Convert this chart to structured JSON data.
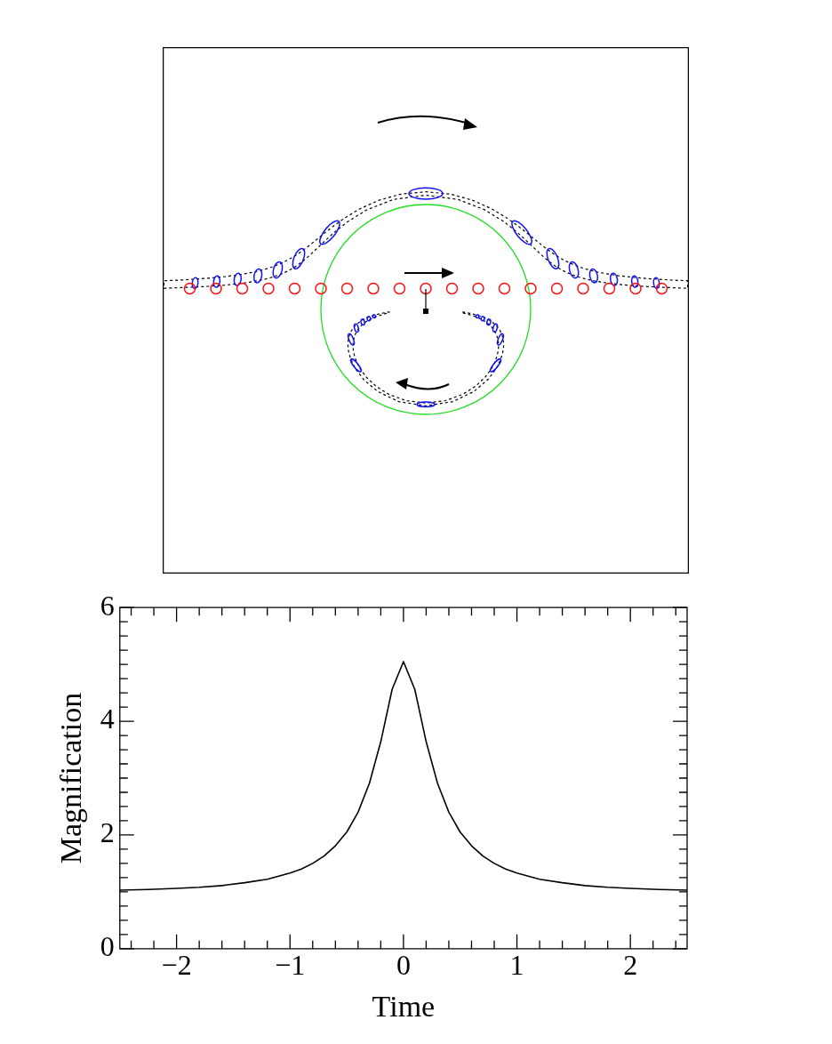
{
  "chart_data": {
    "type": "line",
    "xlabel": "Time",
    "ylabel": "Magnification",
    "x": [
      -2.5,
      -2.25,
      -2.0,
      -1.8,
      -1.6,
      -1.4,
      -1.2,
      -1.0,
      -0.9,
      -0.8,
      -0.7,
      -0.6,
      -0.5,
      -0.4,
      -0.3,
      -0.2,
      -0.1,
      0,
      0.1,
      0.2,
      0.3,
      0.4,
      0.5,
      0.6,
      0.7,
      0.8,
      0.9,
      1.0,
      1.2,
      1.4,
      1.6,
      1.8,
      2.0,
      2.25,
      2.5
    ],
    "series": [
      {
        "color": "#000000",
        "values": [
          1.03,
          1.04,
          1.06,
          1.08,
          1.11,
          1.16,
          1.22,
          1.33,
          1.4,
          1.5,
          1.63,
          1.81,
          2.05,
          2.4,
          2.91,
          3.64,
          4.56,
          5.05,
          4.56,
          3.64,
          2.91,
          2.4,
          2.05,
          1.81,
          1.63,
          1.5,
          1.4,
          1.33,
          1.22,
          1.16,
          1.11,
          1.08,
          1.06,
          1.04,
          1.03
        ]
      }
    ],
    "xlim": [
      -2.5,
      2.5
    ],
    "xticks": [
      {
        "value": -2.4,
        "label": null
      },
      {
        "value": -2.2,
        "label": null
      },
      {
        "value": -2,
        "label": "−2"
      },
      {
        "value": -1.8,
        "label": null
      },
      {
        "value": -1.6,
        "label": null
      },
      {
        "value": -1.4,
        "label": null
      },
      {
        "value": -1.2,
        "label": null
      },
      {
        "value": -1,
        "label": "−1"
      },
      {
        "value": -0.8,
        "label": null
      },
      {
        "value": -0.6,
        "label": null
      },
      {
        "value": -0.4,
        "label": null
      },
      {
        "value": -0.2,
        "label": null
      },
      0,
      {
        "value": 0.2,
        "label": null
      },
      {
        "value": 0.4,
        "label": null
      },
      {
        "value": 0.6,
        "label": null
      },
      {
        "value": 0.8,
        "label": null
      },
      1,
      {
        "value": 1.2,
        "label": null
      },
      {
        "value": 1.4,
        "label": null
      },
      {
        "value": 1.6,
        "label": null
      },
      {
        "value": 1.8,
        "label": null
      },
      2,
      {
        "value": 2.2,
        "label": null
      },
      {
        "value": 2.4,
        "label": null
      }
    ],
    "ylim": [
      0,
      6
    ],
    "yticks": [
      0,
      {
        "value": 0.25,
        "label": null
      },
      {
        "value": 0.5,
        "label": null
      },
      {
        "value": 0.75,
        "label": null
      },
      {
        "value": 1,
        "label": null
      },
      {
        "value": 1.25,
        "label": null
      },
      {
        "value": 1.5,
        "label": null
      },
      {
        "value": 1.75,
        "label": null
      },
      2,
      {
        "value": 2.25,
        "label": null
      },
      {
        "value": 2.5,
        "label": null
      },
      {
        "value": 2.75,
        "label": null
      },
      {
        "value": 3,
        "label": null
      },
      {
        "value": 3.25,
        "label": null
      },
      {
        "value": 3.5,
        "label": null
      },
      {
        "value": 3.75,
        "label": null
      },
      4,
      {
        "value": 4.25,
        "label": null
      },
      {
        "value": 4.5,
        "label": null
      },
      {
        "value": 4.75,
        "label": null
      },
      {
        "value": 5,
        "label": null
      },
      {
        "value": 5.25,
        "label": null
      },
      {
        "value": 5.5,
        "label": null
      },
      {
        "value": 5.75,
        "label": null
      },
      6
    ],
    "grid": false,
    "legend": false,
    "marker": "none",
    "line_style": "solid"
  }
}
